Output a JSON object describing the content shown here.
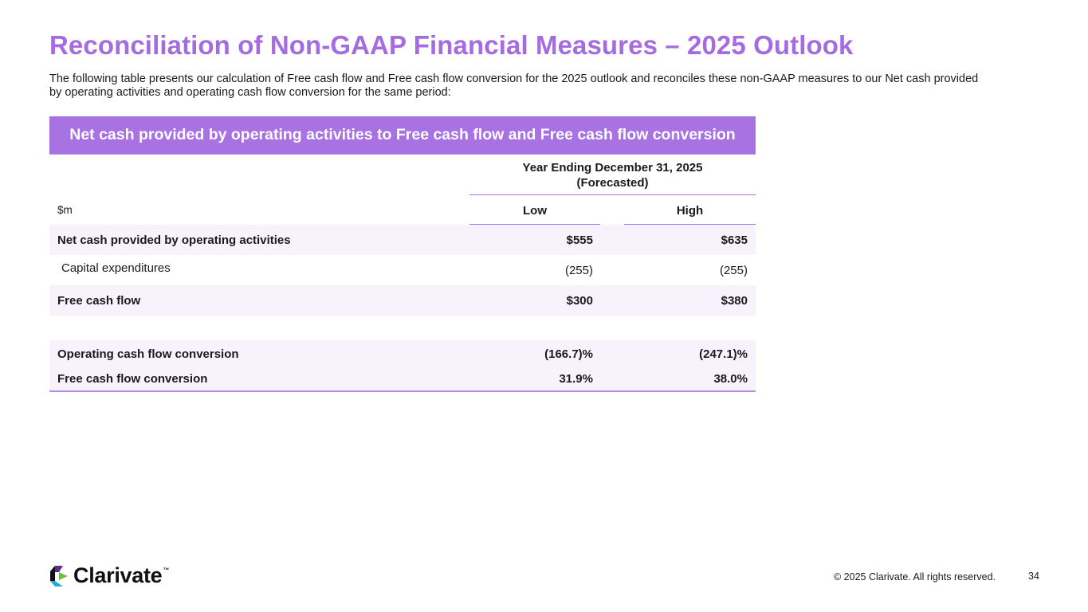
{
  "slide": {
    "title": "Reconciliation of Non-GAAP Financial Measures – 2025 Outlook",
    "intro": "The following table presents our calculation of Free cash flow and Free cash flow conversion for the 2025 outlook and reconciles these non-GAAP measures to our Net cash provided by operating activities and operating cash flow conversion for the same period:"
  },
  "table": {
    "header": "Net cash provided by operating activities to Free cash flow and Free cash flow conversion",
    "column_group_line1": "Year Ending December 31, 2025",
    "column_group_line2": "(Forecasted)",
    "unit_label": "$m",
    "col_low": "Low",
    "col_high": "High",
    "rows": [
      {
        "label": "Net cash provided by operating activities",
        "low": "$555",
        "high": "$635"
      },
      {
        "label": "Capital expenditures",
        "low": "(255)",
        "high": "(255)"
      },
      {
        "label": "Free cash flow",
        "low": "$300",
        "high": "$380"
      },
      {
        "label": "Operating cash flow conversion",
        "low": "(166.7)%",
        "high": "(247.1)%"
      },
      {
        "label": "Free cash flow conversion",
        "low": "31.9%",
        "high": "38.0%"
      }
    ]
  },
  "footer": {
    "logo_text": "Clarivate",
    "logo_tm": "™",
    "copyright": "© 2025 Clarivate. All rights reserved.",
    "page_number": "34"
  },
  "colors": {
    "accent": "#a872e3",
    "title": "#a56be0",
    "row_shade": "#f8f2fc"
  },
  "icons": [
    "clarivate-logo-icon"
  ]
}
